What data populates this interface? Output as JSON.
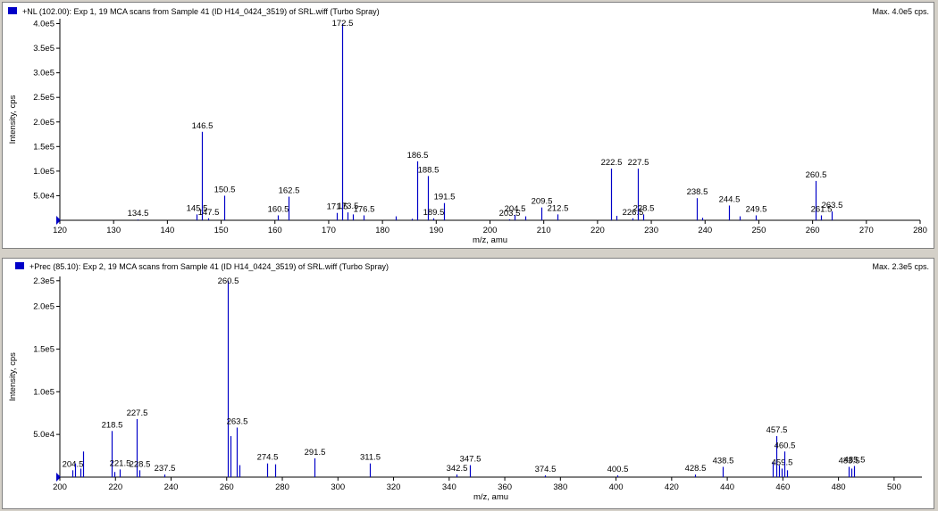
{
  "panes": [
    {
      "title": "+NL (102.00): Exp 1, 19 MCA scans from Sample 41 (ID H14_0424_3519) of SRL.wiff (Turbo Spray)",
      "max_label": "Max. 4.0e5 cps.",
      "swatch_color": "#0000c8"
    },
    {
      "title": "+Prec (85.10): Exp 2, 19 MCA scans from Sample 41 (ID H14_0424_3519) of SRL.wiff (Turbo Spray)",
      "max_label": "Max. 2.3e5 cps.",
      "swatch_color": "#0000c8"
    }
  ],
  "chart_data": [
    {
      "type": "bar",
      "title": "+NL (102.00): Exp 1, 19 MCA scans from Sample 41 (ID H14_0424_3519) of SRL.wiff (Turbo Spray)",
      "xlabel": "m/z, amu",
      "ylabel": "Intensity, cps",
      "xlim": [
        120,
        280
      ],
      "ylim": [
        0,
        410000
      ],
      "xticks": [
        120,
        130,
        140,
        150,
        160,
        170,
        180,
        190,
        200,
        210,
        220,
        230,
        240,
        250,
        260,
        270,
        280
      ],
      "yticks": [
        {
          "value": 50000,
          "label": "5.0e4"
        },
        {
          "value": 100000,
          "label": "1.0e5"
        },
        {
          "value": 150000,
          "label": "1.5e5"
        },
        {
          "value": 200000,
          "label": "2.0e5"
        },
        {
          "value": 250000,
          "label": "2.5e5"
        },
        {
          "value": 300000,
          "label": "3.0e5"
        },
        {
          "value": 350000,
          "label": "3.5e5"
        },
        {
          "value": 400000,
          "label": "4.0e5"
        }
      ],
      "color": "#0000c8",
      "peaks": [
        {
          "x": 134.5,
          "y": 1500,
          "label": "134.5"
        },
        {
          "x": 145.5,
          "y": 12000,
          "label": "145.5"
        },
        {
          "x": 146.5,
          "y": 180000,
          "label": "146.5"
        },
        {
          "x": 147.5,
          "y": 4000,
          "label": "147.5"
        },
        {
          "x": 150.5,
          "y": 50000,
          "label": "150.5"
        },
        {
          "x": 160.5,
          "y": 10000,
          "label": "160.5"
        },
        {
          "x": 162.5,
          "y": 48000,
          "label": "162.5"
        },
        {
          "x": 171.5,
          "y": 15000,
          "label": "171.5"
        },
        {
          "x": 172.5,
          "y": 400000,
          "label": "172.5"
        },
        {
          "x": 173.5,
          "y": 16000,
          "label": "173.5"
        },
        {
          "x": 174.5,
          "y": 12000,
          "label": ""
        },
        {
          "x": 176.5,
          "y": 10000,
          "label": "176.5"
        },
        {
          "x": 182.5,
          "y": 8000,
          "label": ""
        },
        {
          "x": 185.5,
          "y": 3000,
          "label": ""
        },
        {
          "x": 186.5,
          "y": 120000,
          "label": "186.5"
        },
        {
          "x": 188.5,
          "y": 90000,
          "label": "188.5"
        },
        {
          "x": 189.5,
          "y": 4000,
          "label": "189.5"
        },
        {
          "x": 191.5,
          "y": 35000,
          "label": "191.5"
        },
        {
          "x": 203.5,
          "y": 2000,
          "label": "203.5"
        },
        {
          "x": 204.5,
          "y": 11000,
          "label": "204.5"
        },
        {
          "x": 206.5,
          "y": 8000,
          "label": ""
        },
        {
          "x": 209.5,
          "y": 26000,
          "label": "209.5"
        },
        {
          "x": 212.5,
          "y": 12000,
          "label": "212.5"
        },
        {
          "x": 222.5,
          "y": 105000,
          "label": "222.5"
        },
        {
          "x": 223.5,
          "y": 9000,
          "label": ""
        },
        {
          "x": 226.5,
          "y": 4000,
          "label": "226.5"
        },
        {
          "x": 227.5,
          "y": 105000,
          "label": "227.5"
        },
        {
          "x": 228.5,
          "y": 12000,
          "label": "228.5"
        },
        {
          "x": 238.5,
          "y": 45000,
          "label": "238.5"
        },
        {
          "x": 239.5,
          "y": 5000,
          "label": ""
        },
        {
          "x": 244.5,
          "y": 30000,
          "label": "244.5"
        },
        {
          "x": 246.5,
          "y": 8000,
          "label": ""
        },
        {
          "x": 249.5,
          "y": 10000,
          "label": "249.5"
        },
        {
          "x": 260.5,
          "y": 80000,
          "label": "260.5"
        },
        {
          "x": 261.5,
          "y": 10000,
          "label": "261.5"
        },
        {
          "x": 263.5,
          "y": 18000,
          "label": "263.5"
        }
      ]
    },
    {
      "type": "bar",
      "title": "+Prec (85.10): Exp 2, 19 MCA scans from Sample 41 (ID H14_0424_3519) of SRL.wiff (Turbo Spray)",
      "xlabel": "m/z, amu",
      "ylabel": "Intensity, cps",
      "xlim": [
        200,
        510
      ],
      "ylim": [
        0,
        235000
      ],
      "xticks": [
        200,
        220,
        240,
        260,
        280,
        300,
        320,
        340,
        360,
        380,
        400,
        420,
        440,
        460,
        480,
        500
      ],
      "yticks": [
        {
          "value": 50000,
          "label": "5.0e4"
        },
        {
          "value": 100000,
          "label": "1.0e5"
        },
        {
          "value": 150000,
          "label": "1.5e5"
        },
        {
          "value": 200000,
          "label": "2.0e5"
        },
        {
          "value": 230000,
          "label": "2.3e5"
        }
      ],
      "color": "#0000c8",
      "peaks": [
        {
          "x": 204.5,
          "y": 8000,
          "label": "204.5"
        },
        {
          "x": 205.5,
          "y": 16000,
          "label": ""
        },
        {
          "x": 207.5,
          "y": 10000,
          "label": ""
        },
        {
          "x": 208.5,
          "y": 30000,
          "label": ""
        },
        {
          "x": 218.5,
          "y": 54000,
          "label": "218.5"
        },
        {
          "x": 219.5,
          "y": 6000,
          "label": ""
        },
        {
          "x": 221.5,
          "y": 9000,
          "label": "221.5"
        },
        {
          "x": 227.5,
          "y": 68000,
          "label": "227.5"
        },
        {
          "x": 228.5,
          "y": 8000,
          "label": "228.5"
        },
        {
          "x": 237.5,
          "y": 3000,
          "label": "237.5"
        },
        {
          "x": 260.5,
          "y": 230000,
          "label": "260.5"
        },
        {
          "x": 261.5,
          "y": 48000,
          "label": ""
        },
        {
          "x": 263.5,
          "y": 58000,
          "label": "263.5"
        },
        {
          "x": 264.5,
          "y": 14000,
          "label": ""
        },
        {
          "x": 274.5,
          "y": 16000,
          "label": "274.5"
        },
        {
          "x": 277.5,
          "y": 15000,
          "label": ""
        },
        {
          "x": 291.5,
          "y": 22000,
          "label": "291.5"
        },
        {
          "x": 311.5,
          "y": 16000,
          "label": "311.5"
        },
        {
          "x": 342.5,
          "y": 3000,
          "label": "342.5"
        },
        {
          "x": 347.5,
          "y": 14000,
          "label": "347.5"
        },
        {
          "x": 374.5,
          "y": 2000,
          "label": "374.5"
        },
        {
          "x": 400.5,
          "y": 2000,
          "label": "400.5"
        },
        {
          "x": 428.5,
          "y": 3000,
          "label": "428.5"
        },
        {
          "x": 438.5,
          "y": 12000,
          "label": "438.5"
        },
        {
          "x": 456.5,
          "y": 18000,
          "label": ""
        },
        {
          "x": 457.5,
          "y": 48000,
          "label": "457.5"
        },
        {
          "x": 458.5,
          "y": 14000,
          "label": ""
        },
        {
          "x": 459.5,
          "y": 10000,
          "label": "459.5"
        },
        {
          "x": 460.5,
          "y": 30000,
          "label": "460.5"
        },
        {
          "x": 461.5,
          "y": 8000,
          "label": ""
        },
        {
          "x": 483.5,
          "y": 12000,
          "label": "483.5"
        },
        {
          "x": 484.5,
          "y": 10000,
          "label": ""
        },
        {
          "x": 485.5,
          "y": 13000,
          "label": "485.5"
        }
      ]
    }
  ]
}
